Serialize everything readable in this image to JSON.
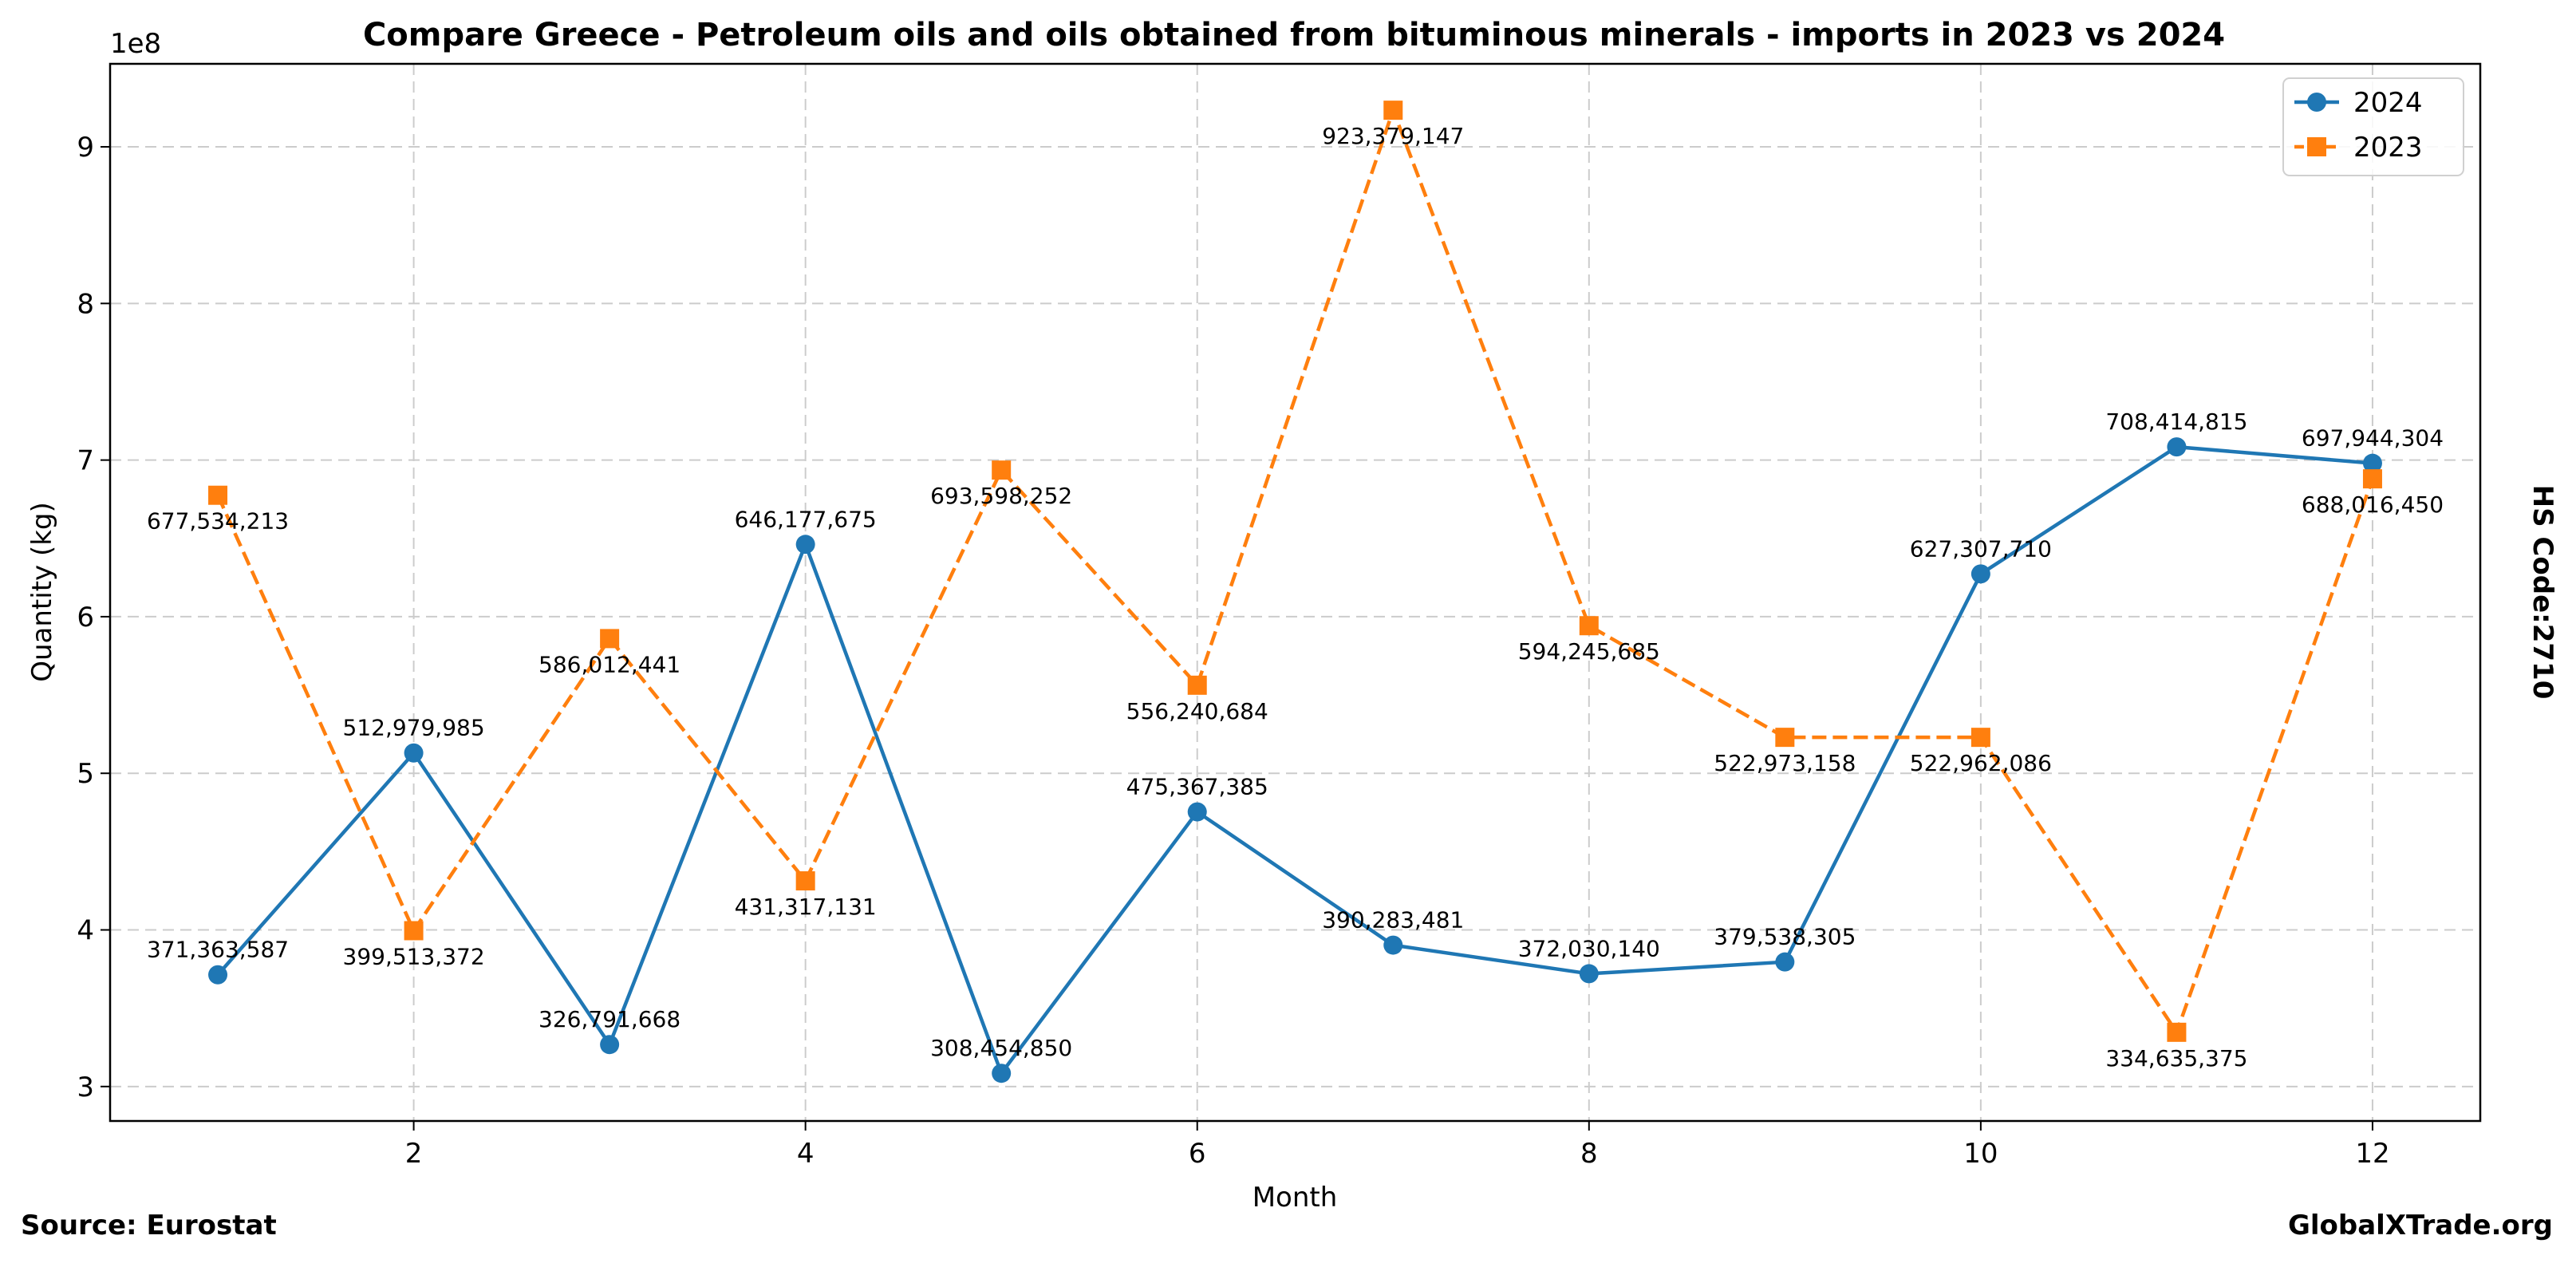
{
  "chart_data": {
    "type": "line",
    "title": "Compare Greece - Petroleum oils and oils obtained from bituminous minerals - imports in 2023 vs 2024",
    "xlabel": "Month",
    "ylabel": "Quantity (kg)",
    "y_offset_label": "1e8",
    "side_label": "HS Code:2710",
    "source_label": "Source: Eurostat",
    "brand_label": "GlobalXTrade.org",
    "xlim": [
      0.45,
      12.55
    ],
    "ylim": [
      278000000,
      953000000
    ],
    "x_ticks": [
      2,
      4,
      6,
      8,
      10,
      12
    ],
    "x_tick_labels": [
      "2",
      "4",
      "6",
      "8",
      "10",
      "12"
    ],
    "y_ticks": [
      300000000,
      400000000,
      500000000,
      600000000,
      700000000,
      800000000,
      900000000
    ],
    "y_tick_labels": [
      "3",
      "4",
      "5",
      "6",
      "7",
      "8",
      "9"
    ],
    "grid": true,
    "legend_position": "top-right",
    "x": [
      1,
      2,
      3,
      4,
      5,
      6,
      7,
      8,
      9,
      10,
      11,
      12
    ],
    "series": [
      {
        "name": "2024",
        "color": "#1f77b4",
        "line_style": "solid",
        "marker": "circle",
        "label_position": "above",
        "values": [
          371363587,
          512979985,
          326791668,
          646177675,
          308454850,
          475367385,
          390283481,
          372030140,
          379538305,
          627307710,
          708414815,
          697944304
        ],
        "labels": [
          "371,363,587",
          "512,979,985",
          "326,791,668",
          "646,177,675",
          "308,454,850",
          "475,367,385",
          "390,283,481",
          "372,030,140",
          "379,538,305",
          "627,307,710",
          "708,414,815",
          "697,944,304"
        ]
      },
      {
        "name": "2023",
        "color": "#ff7f0e",
        "line_style": "dashed",
        "marker": "square",
        "label_position": "below",
        "values": [
          677534213,
          399513372,
          586012441,
          431317131,
          693598252,
          556240684,
          923379147,
          594245685,
          522973158,
          522962086,
          334635375,
          688016450
        ],
        "labels": [
          "677,534,213",
          "399,513,372",
          "586,012,441",
          "431,317,131",
          "693,598,252",
          "556,240,684",
          "923,379,147",
          "594,245,685",
          "522,973,158",
          "522,962,086",
          "334,635,375",
          "688,016,450"
        ]
      }
    ]
  }
}
